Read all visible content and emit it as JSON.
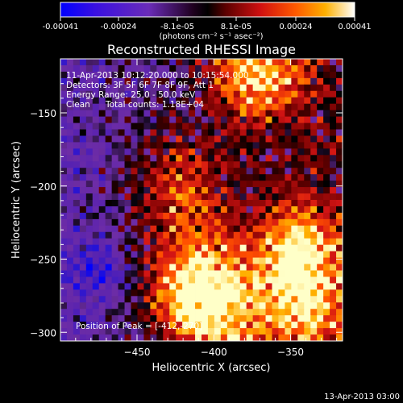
{
  "chart_data": {
    "type": "heatmap",
    "title": "Reconstructed RHESSI Image",
    "xlabel": "Heliocentric X (arcsec)",
    "ylabel": "Heliocentric Y (arcsec)",
    "xlim": [
      -498,
      -415
    ],
    "ylim": [
      -305,
      -131
    ],
    "x_ticks": [
      "-450",
      "-400",
      "-350"
    ],
    "y_ticks": [
      "-150",
      "-200",
      "-250",
      "-300"
    ],
    "colorbar": {
      "ticks": [
        "-0.00041",
        "-0.00024",
        "-8.1e-05",
        "8.1e-05",
        "0.00024",
        "0.00041"
      ],
      "unit_label": "(photons cm⁻² s⁻¹ asec⁻²)",
      "range": [
        -0.00041,
        0.00041
      ],
      "colormap": [
        "#0000ff",
        "#5a14c8",
        "#6a2cb8",
        "#000000",
        "#6a0000",
        "#d01010",
        "#ff4a00",
        "#ffaa00",
        "#ffff90",
        "#ffffff"
      ]
    },
    "annotations": [
      "11-Apr-2013 10:12:20.000 to 10:15:54.000",
      "Detectors: 3F 5F 6F 7F 8F 9F, Att 1",
      "Energy Range: 25.0 - 50.0 keV",
      "Clean",
      "Total counts: 1.18E+04"
    ],
    "peak_label": "Position of Peak = [-412,-270]",
    "peak_position": [
      -412,
      -270
    ],
    "bright_regions": [
      {
        "x": -412,
        "y": -270,
        "relative_intensity": 1.0
      },
      {
        "x": -345,
        "y": -250,
        "relative_intensity": 0.85
      },
      {
        "x": -370,
        "y": -140,
        "relative_intensity": 0.85
      },
      {
        "x": -420,
        "y": -210,
        "relative_intensity": 0.6
      },
      {
        "x": -395,
        "y": -295,
        "relative_intensity": 0.55
      },
      {
        "x": -340,
        "y": -290,
        "relative_intensity": 0.6
      }
    ],
    "date_stamp": "13-Apr-2013 03:00"
  }
}
